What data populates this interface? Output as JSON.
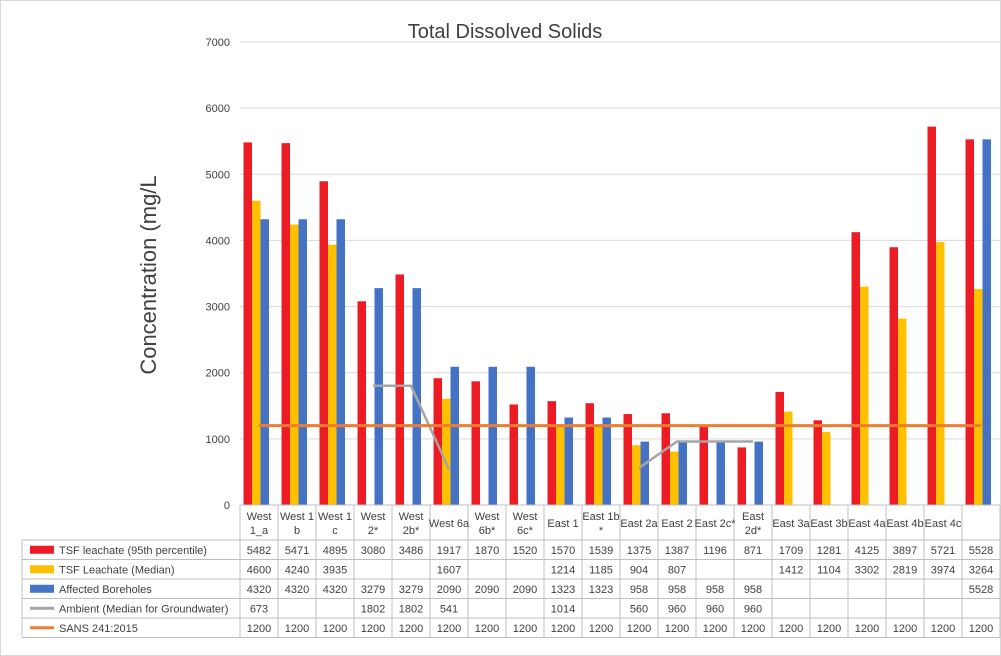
{
  "chart_data": {
    "type": "bar",
    "title": "Total Dissolved Solids",
    "ylabel": "Concentration (mg/L",
    "ylim": [
      0,
      7000
    ],
    "yticks": [
      0,
      1000,
      2000,
      3000,
      4000,
      5000,
      6000,
      7000
    ],
    "grid": true,
    "legend_placement": "data-table-left",
    "categories": [
      [
        "West",
        "1_a"
      ],
      [
        "West 1",
        "b"
      ],
      [
        "West 1",
        "c"
      ],
      [
        "West",
        "2*"
      ],
      [
        "West",
        "2b*"
      ],
      [
        "West 6a"
      ],
      [
        "West",
        "6b*"
      ],
      [
        "West",
        "6c*"
      ],
      [
        "East 1"
      ],
      [
        "East 1b",
        "*"
      ],
      [
        "East 2a"
      ],
      [
        "East 2"
      ],
      [
        "East 2c*"
      ],
      [
        "East",
        "2d*"
      ],
      [
        "East 3a"
      ],
      [
        "East 3b"
      ],
      [
        "East 4a"
      ],
      [
        "East 4b"
      ],
      [
        "East 4c"
      ],
      [
        ""
      ]
    ],
    "series": [
      {
        "name": "TSF leachate (95th percentile)",
        "kind": "bar",
        "color": "#ed1c24",
        "values": [
          5482,
          5471,
          4895,
          3080,
          3486,
          1917,
          1870,
          1520,
          1570,
          1539,
          1375,
          1387,
          1196,
          871,
          1709,
          1281,
          4125,
          3897,
          5721,
          5528
        ]
      },
      {
        "name": "TSF Leachate (Median)",
        "kind": "bar",
        "color": "#ffc000",
        "values": [
          4600,
          4240,
          3935,
          null,
          null,
          1607,
          null,
          null,
          1214,
          1185,
          904,
          807,
          null,
          null,
          1412,
          1104,
          3302,
          2819,
          3974,
          3264
        ]
      },
      {
        "name": "Affected Boreholes",
        "kind": "bar",
        "color": "#4472c4",
        "values": [
          4320,
          4320,
          4320,
          3279,
          3279,
          2090,
          2090,
          2090,
          1323,
          1323,
          958,
          958,
          958,
          958,
          null,
          null,
          null,
          null,
          null,
          5528
        ]
      },
      {
        "name": "Ambient (Median for Groundwater)",
        "kind": "line",
        "color": "#a5a5a5",
        "values": [
          673,
          null,
          null,
          1802,
          1802,
          541,
          null,
          null,
          1014,
          null,
          560,
          960,
          960,
          960,
          null,
          null,
          null,
          null,
          null,
          null
        ]
      },
      {
        "name": "SANS 241:2015",
        "kind": "line",
        "color": "#ed7d31",
        "values": [
          1200,
          1200,
          1200,
          1200,
          1200,
          1200,
          1200,
          1200,
          1200,
          1200,
          1200,
          1200,
          1200,
          1200,
          1200,
          1200,
          1200,
          1200,
          1200,
          1200
        ]
      }
    ]
  }
}
